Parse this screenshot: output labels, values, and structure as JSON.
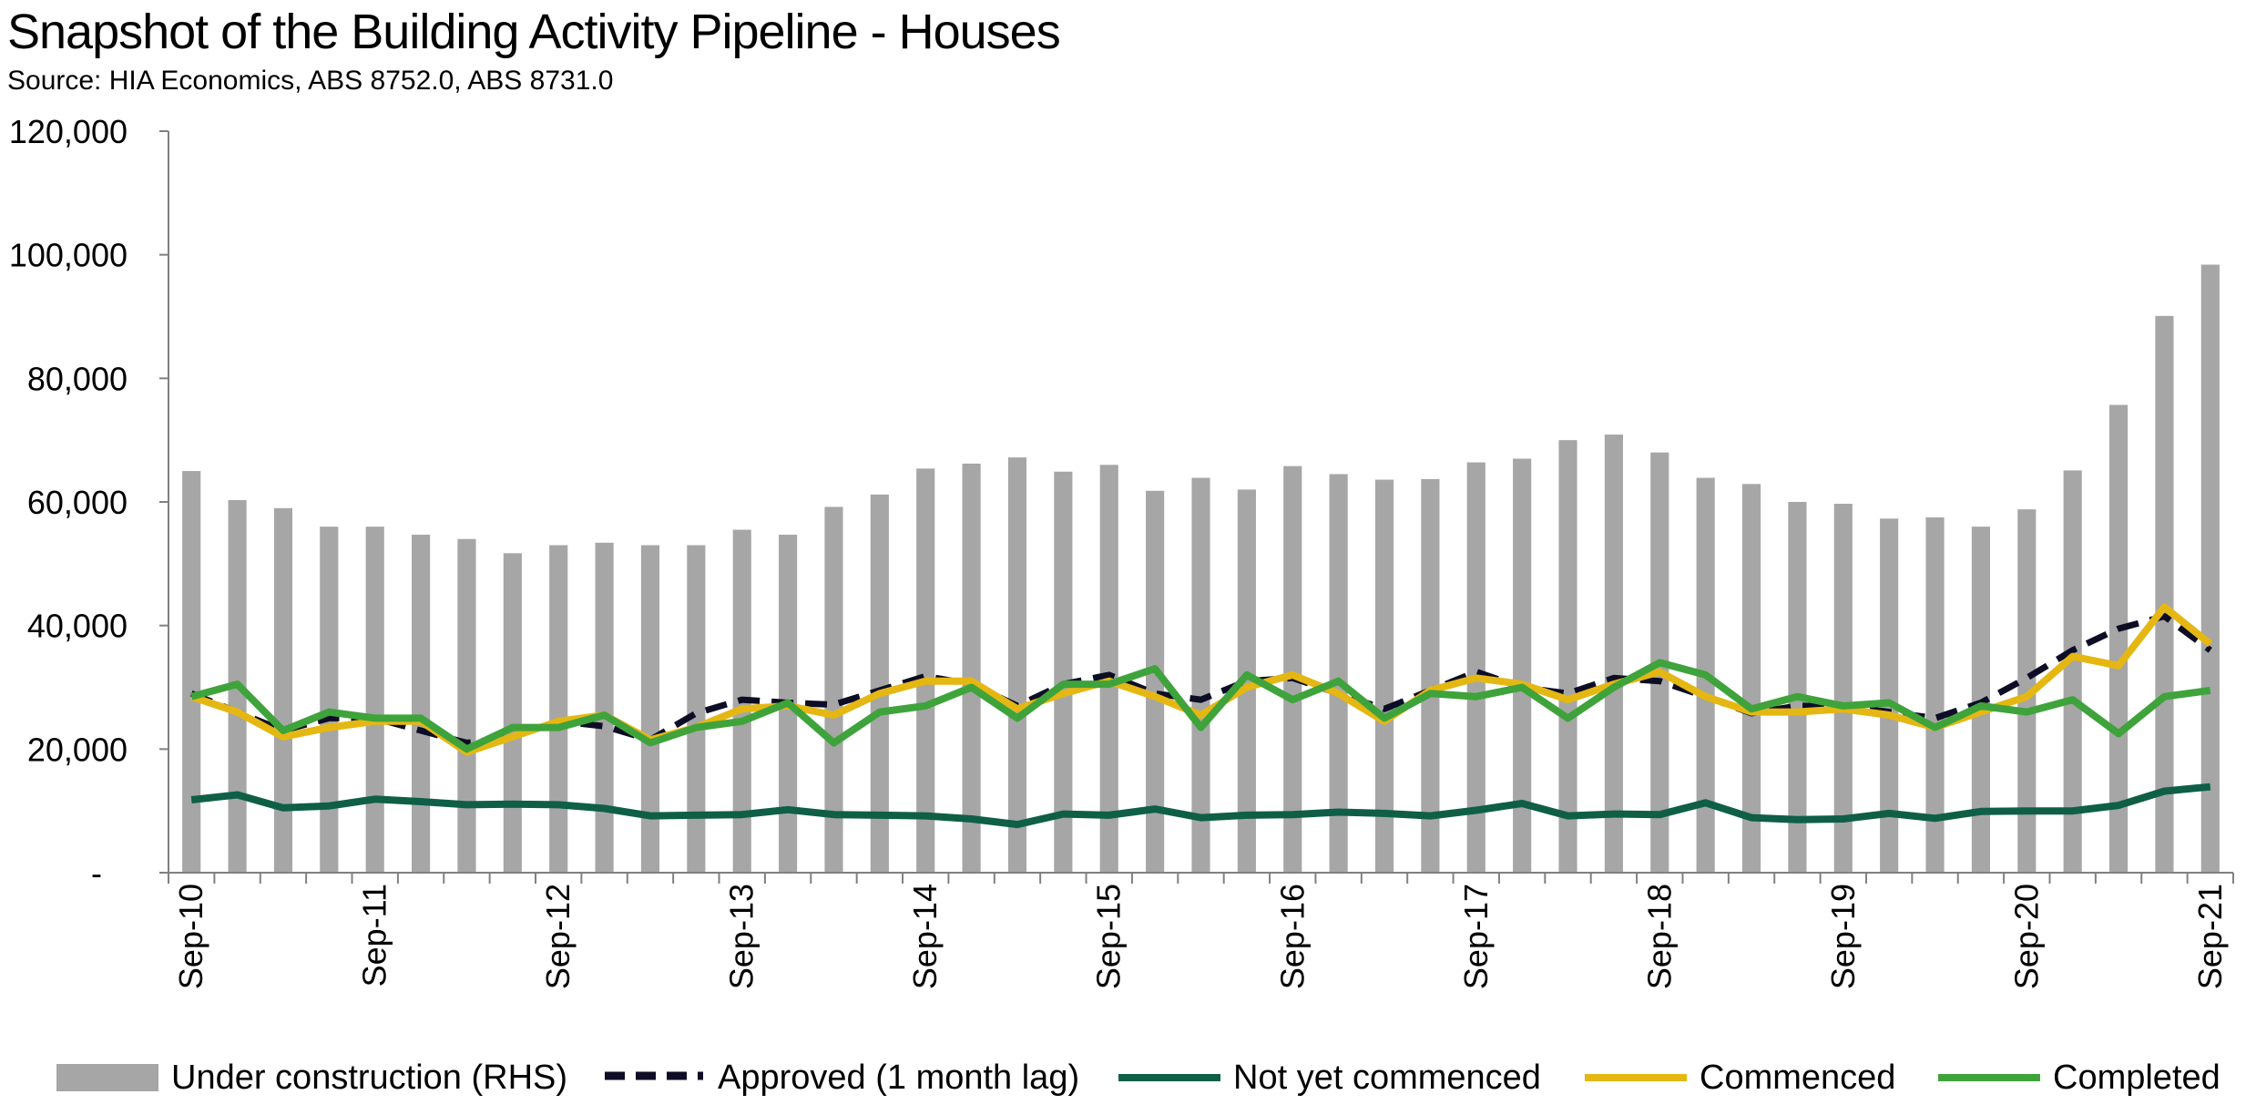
{
  "chart_data": {
    "type": "bar+line",
    "title": "Snapshot of the Building Activity Pipeline - Houses",
    "subtitle": "Source: HIA Economics, ABS 8752.0, ABS 8731.0",
    "y_axis": {
      "ylim": [
        0,
        120000
      ],
      "tick_labels": [
        "-",
        "20,000",
        "40,000",
        "60,000",
        "80,000",
        "100,000",
        "120,000"
      ]
    },
    "x_tick_labels": [
      {
        "index": 0,
        "label": "Sep-10"
      },
      {
        "index": 4,
        "label": "Sep-11"
      },
      {
        "index": 8,
        "label": "Sep-12"
      },
      {
        "index": 12,
        "label": "Sep-13"
      },
      {
        "index": 16,
        "label": "Sep-14"
      },
      {
        "index": 20,
        "label": "Sep-15"
      },
      {
        "index": 24,
        "label": "Sep-16"
      },
      {
        "index": 28,
        "label": "Sep-17"
      },
      {
        "index": 32,
        "label": "Sep-18"
      },
      {
        "index": 36,
        "label": "Sep-19"
      },
      {
        "index": 40,
        "label": "Sep-20"
      },
      {
        "index": 44,
        "label": "Sep-21"
      }
    ],
    "series": [
      {
        "name": "Under construction (RHS)",
        "kind": "bar",
        "color": "#a6a6a6",
        "values": [
          65000,
          60300,
          59000,
          56000,
          56000,
          54700,
          54000,
          51700,
          53000,
          53400,
          53000,
          53000,
          55500,
          54700,
          59200,
          61200,
          65400,
          66200,
          67200,
          64900,
          66000,
          61800,
          63900,
          62000,
          65800,
          64500,
          63600,
          63700,
          66400,
          67000,
          70000,
          70900,
          68000,
          63900,
          62900,
          60000,
          59700,
          57300,
          57500,
          56000,
          58800,
          65100,
          75700,
          90100,
          98400
        ]
      },
      {
        "name": "Approved (1 month lag)",
        "kind": "dashed-line",
        "color": "#0d0d26",
        "values": [
          29000,
          26000,
          23000,
          25000,
          25000,
          23000,
          21000,
          22000,
          24500,
          23700,
          21500,
          25800,
          28000,
          27500,
          27200,
          29500,
          31800,
          30500,
          27000,
          30500,
          32000,
          29000,
          28000,
          31000,
          31500,
          29000,
          26500,
          29500,
          32500,
          30000,
          29000,
          31500,
          31000,
          28500,
          25800,
          27000,
          27000,
          26000,
          25000,
          27500,
          31500,
          36000,
          39500,
          41500,
          36000
        ]
      },
      {
        "name": "Not yet commenced",
        "kind": "line",
        "color": "#0e5f46",
        "values": [
          11800,
          12600,
          10500,
          10800,
          11900,
          11500,
          11000,
          11100,
          11000,
          10400,
          9200,
          9300,
          9400,
          10200,
          9400,
          9300,
          9200,
          8700,
          7800,
          9500,
          9300,
          10300,
          8900,
          9300,
          9400,
          9800,
          9600,
          9200,
          10100,
          11200,
          9200,
          9500,
          9400,
          11300,
          8900,
          8600,
          8700,
          9600,
          8800,
          9900,
          10000,
          10000,
          10900,
          13200,
          13900
        ]
      },
      {
        "name": "Commenced",
        "kind": "line",
        "color": "#e5b713",
        "values": [
          28500,
          26000,
          22000,
          23500,
          24500,
          24500,
          19500,
          22000,
          24500,
          25500,
          21500,
          23500,
          26500,
          27000,
          25500,
          29000,
          31000,
          31000,
          26500,
          29000,
          31000,
          28500,
          25500,
          30000,
          32000,
          29000,
          24500,
          29500,
          31500,
          30500,
          28000,
          30500,
          32500,
          28500,
          26000,
          26000,
          26500,
          25500,
          23500,
          26000,
          28500,
          35000,
          33500,
          43000,
          37000
        ]
      },
      {
        "name": "Completed",
        "kind": "line",
        "color": "#3fa33b",
        "values": [
          28500,
          30500,
          23000,
          26000,
          25000,
          25000,
          20000,
          23500,
          23500,
          25500,
          21000,
          23500,
          24500,
          27500,
          21000,
          26000,
          27000,
          30000,
          25000,
          30500,
          30500,
          33000,
          23500,
          32000,
          28000,
          31000,
          25000,
          29000,
          28500,
          30000,
          25000,
          30000,
          34000,
          32000,
          26500,
          28500,
          27000,
          27500,
          23500,
          27000,
          26000,
          28000,
          22500,
          28500,
          29500
        ]
      }
    ]
  }
}
